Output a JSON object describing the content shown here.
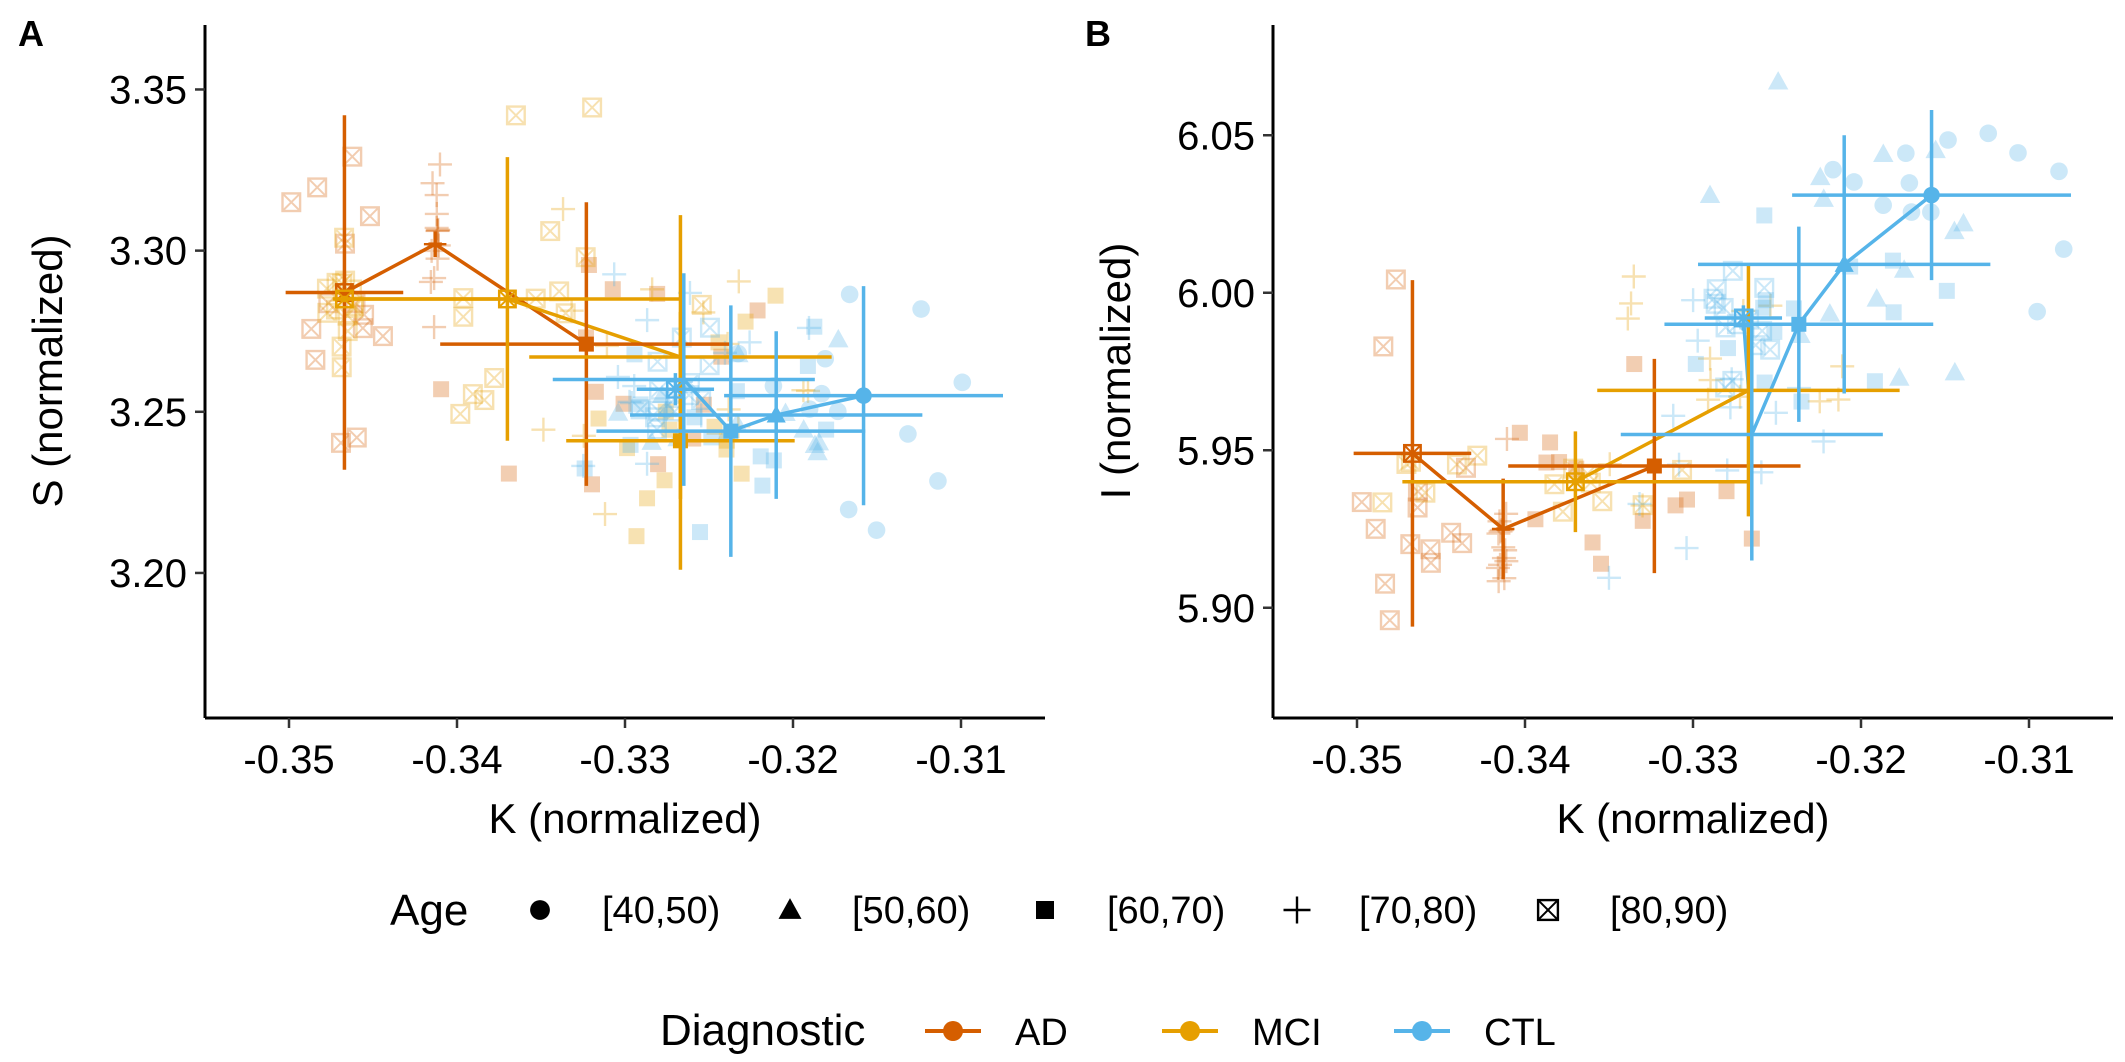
{
  "colors": {
    "AD": "#D55E00",
    "MCI": "#E69F00",
    "CTL": "#56B4E9"
  },
  "chart_data": [
    {
      "type": "scatter",
      "panel_tag": "A",
      "xlabel": "K (normalized)",
      "ylabel": "S (normalized)",
      "xlim": [
        -0.355,
        -0.305
      ],
      "ylim": [
        3.155,
        3.37
      ],
      "xticks": [
        -0.35,
        -0.34,
        -0.33,
        -0.32,
        -0.31
      ],
      "yticks": [
        3.2,
        3.25,
        3.3,
        3.35
      ],
      "xtick_labels": [
        "-0.35",
        "-0.34",
        "-0.33",
        "-0.32",
        "-0.31"
      ],
      "ytick_labels": [
        "3.20",
        "3.25",
        "3.30",
        "3.35"
      ],
      "grid": false,
      "series": [
        {
          "name": "AD",
          "color": "#D55E00",
          "points": [
            {
              "x": -0.3467,
              "y": 3.287,
              "xerr": 0.0035,
              "yerr": 0.055,
              "age": "[80,90)"
            },
            {
              "x": -0.3413,
              "y": 3.302,
              "xerr": 0.0004,
              "yerr": 0.004,
              "age": "[70,80)"
            },
            {
              "x": -0.3323,
              "y": 3.271,
              "xerr": 0.0087,
              "yerr": 0.044,
              "age": "[60,70)"
            }
          ]
        },
        {
          "name": "MCI",
          "color": "#E69F00",
          "points": [
            {
              "x": -0.3467,
              "y": 3.285,
              "xerr": 0.0007,
              "yerr": 0.001,
              "age": "[80,90)"
            },
            {
              "x": -0.337,
              "y": 3.285,
              "xerr": 0.0103,
              "yerr": 0.044,
              "age": "[80,90)"
            },
            {
              "x": -0.3267,
              "y": 3.267,
              "xerr": 0.009,
              "yerr": 0.044,
              "age": "[70,80)"
            },
            {
              "x": -0.3267,
              "y": 3.241,
              "xerr": 0.0068,
              "yerr": 0.04,
              "age": "[60,70)"
            }
          ]
        },
        {
          "name": "CTL",
          "color": "#56B4E9",
          "points": [
            {
              "x": -0.327,
              "y": 3.257,
              "xerr": 0.0023,
              "yerr": 0.005,
              "age": "[80,90)"
            },
            {
              "x": -0.3265,
              "y": 3.26,
              "xerr": 0.0078,
              "yerr": 0.033,
              "age": "[70,80)"
            },
            {
              "x": -0.3237,
              "y": 3.244,
              "xerr": 0.008,
              "yerr": 0.039,
              "age": "[60,70)"
            },
            {
              "x": -0.321,
              "y": 3.249,
              "xerr": 0.0087,
              "yerr": 0.026,
              "age": "[50,60)"
            },
            {
              "x": -0.3158,
              "y": 3.255,
              "xerr": 0.0083,
              "yerr": 0.034,
              "age": "[40,50)"
            }
          ]
        }
      ]
    },
    {
      "type": "scatter",
      "panel_tag": "B",
      "xlabel": "K (normalized)",
      "ylabel": "I (normalized)",
      "xlim": [
        -0.355,
        -0.305
      ],
      "ylim": [
        5.865,
        6.085
      ],
      "xticks": [
        -0.35,
        -0.34,
        -0.33,
        -0.32,
        -0.31
      ],
      "yticks": [
        5.9,
        5.95,
        6.0,
        6.05
      ],
      "xtick_labels": [
        "-0.35",
        "-0.34",
        "-0.33",
        "-0.32",
        "-0.31"
      ],
      "ytick_labels": [
        "5.90",
        "5.95",
        "6.00",
        "6.05"
      ],
      "grid": false,
      "series": [
        {
          "name": "AD",
          "color": "#D55E00",
          "points": [
            {
              "x": -0.3467,
              "y": 5.949,
              "xerr": 0.0035,
              "yerr": 0.055,
              "age": "[80,90)"
            },
            {
              "x": -0.3413,
              "y": 5.925,
              "xerr": 0.0004,
              "yerr": 0.016,
              "age": "[70,80)"
            },
            {
              "x": -0.3323,
              "y": 5.945,
              "xerr": 0.0087,
              "yerr": 0.034,
              "age": "[60,70)"
            }
          ]
        },
        {
          "name": "MCI",
          "color": "#E69F00",
          "points": [
            {
              "x": -0.337,
              "y": 5.94,
              "xerr": 0.0103,
              "yerr": 0.016,
              "age": "[80,90)"
            },
            {
              "x": -0.3267,
              "y": 5.969,
              "xerr": 0.009,
              "yerr": 0.04,
              "age": "[70,80)"
            }
          ]
        },
        {
          "name": "CTL",
          "color": "#56B4E9",
          "points": [
            {
              "x": -0.327,
              "y": 5.992,
              "xerr": 0.0023,
              "yerr": 0.004,
              "age": "[80,90)"
            },
            {
              "x": -0.3265,
              "y": 5.955,
              "xerr": 0.0078,
              "yerr": 0.04,
              "age": "[70,80)"
            },
            {
              "x": -0.3237,
              "y": 5.99,
              "xerr": 0.008,
              "yerr": 0.031,
              "age": "[60,70)"
            },
            {
              "x": -0.321,
              "y": 6.009,
              "xerr": 0.0087,
              "yerr": 0.041,
              "age": "[50,60)"
            },
            {
              "x": -0.3158,
              "y": 6.031,
              "xerr": 0.0083,
              "yerr": 0.027,
              "age": "[40,50)"
            }
          ]
        }
      ]
    }
  ],
  "legend_age": {
    "title": "Age",
    "items": [
      {
        "label": "[40,50)",
        "shape": "circle-icon"
      },
      {
        "label": "[50,60)",
        "shape": "triangle-icon"
      },
      {
        "label": "[60,70)",
        "shape": "square-icon"
      },
      {
        "label": "[70,80)",
        "shape": "plus-icon"
      },
      {
        "label": "[80,90)",
        "shape": "boxed-cross-icon"
      }
    ]
  },
  "legend_diagnostic": {
    "title": "Diagnostic",
    "items": [
      {
        "label": "AD",
        "color": "#D55E00"
      },
      {
        "label": "MCI",
        "color": "#E69F00"
      },
      {
        "label": "CTL",
        "color": "#56B4E9"
      }
    ]
  }
}
